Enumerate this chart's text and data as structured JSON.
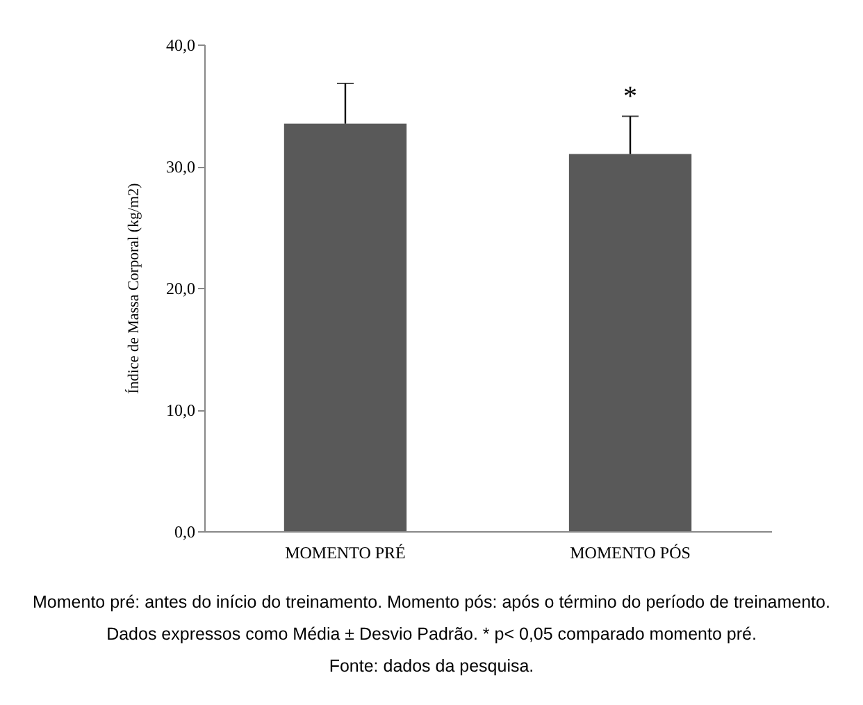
{
  "chart_data": {
    "type": "bar",
    "ylabel": "Índice de Massa Corporal (kg/m2)",
    "categories": [
      "MOMENTO PRÉ",
      "MOMENTO PÓS"
    ],
    "values": [
      33.5,
      31.0
    ],
    "color": "#595959",
    "errors": [
      [
        33.5,
        36.8
      ],
      [
        31.0,
        34.1
      ]
    ],
    "ylim": [
      0,
      40
    ],
    "yticks": [
      {
        "value": 0,
        "label": "0,0"
      },
      {
        "value": 10,
        "label": "10,0"
      },
      {
        "value": 20,
        "label": "20,0"
      },
      {
        "value": 30,
        "label": "30,0"
      },
      {
        "value": 40,
        "label": "40,0"
      }
    ],
    "grid": false,
    "annotations": [
      {
        "text": "*",
        "x": "MOMENTO PÓS",
        "y": 34.1
      },
      "Momento pré: antes do início do treinamento. Momento pós: após o término do período de treinamento.",
      "Dados expressos como Média ± Desvio Padrão. * p< 0,05 comparado momento pré.",
      "Fonte: dados da pesquisa."
    ]
  }
}
